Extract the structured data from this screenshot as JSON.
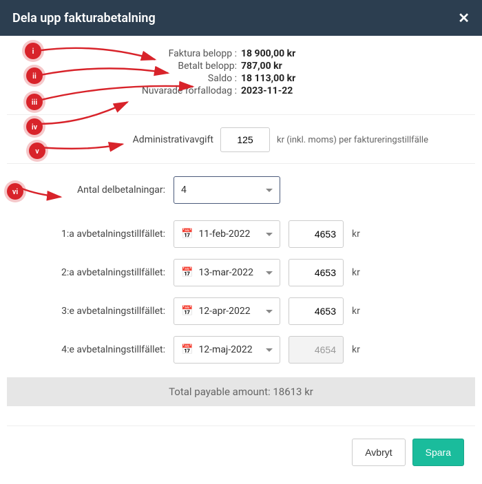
{
  "header": {
    "title": "Dela upp fakturabetalning"
  },
  "info": {
    "invoice_amount_label": "Faktura belopp :",
    "invoice_amount_value": "18 900,00 kr",
    "paid_amount_label": "Betalt belopp:",
    "paid_amount_value": "787,00 kr",
    "balance_label": "Saldo :",
    "balance_value": "18 113,00 kr",
    "due_date_label": "Nuvarade förfallodag :",
    "due_date_value": "2023-11-22"
  },
  "admin_fee": {
    "label": "Administrativavgift",
    "value": "125",
    "suffix": "kr (inkl. moms) per faktureringstillfälle"
  },
  "count": {
    "label": "Antal delbetalningar:",
    "value": "4"
  },
  "installments": [
    {
      "label": "1:a avbetalningstillfället:",
      "date": "11-feb-2022",
      "amount": "4653",
      "unit": "kr",
      "disabled": false
    },
    {
      "label": "2:a avbetalningstillfället:",
      "date": "13-mar-2022",
      "amount": "4653",
      "unit": "kr",
      "disabled": false
    },
    {
      "label": "3:e avbetalningstillfället:",
      "date": "12-apr-2022",
      "amount": "4653",
      "unit": "kr",
      "disabled": false
    },
    {
      "label": "4:e avbetalningstillfället:",
      "date": "12-maj-2022",
      "amount": "4654",
      "unit": "kr",
      "disabled": true
    }
  ],
  "total": {
    "text": "Total payable amount: 18613 kr"
  },
  "footer": {
    "cancel": "Avbryt",
    "save": "Spara"
  },
  "annotations": {
    "badges": [
      "i",
      "ii",
      "iii",
      "iv",
      "v",
      "vi"
    ],
    "color": "#d8232a"
  }
}
